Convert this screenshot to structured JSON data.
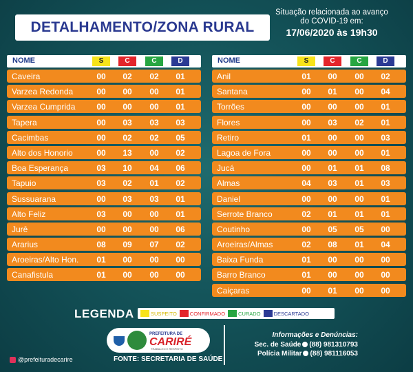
{
  "header": {
    "title": "DETALHAMENTO/ZONA RURAL",
    "situation_line1": "Situação relacionada ao avanço",
    "situation_line2": "do COVID-19 em:",
    "date": "17/06/2020 às 19h30"
  },
  "columns": {
    "name": "NOME",
    "s": "S",
    "c": "C",
    "cu": "C",
    "d": "D"
  },
  "colors": {
    "s": "#f7e31a",
    "c": "#e3252b",
    "cu": "#27a642",
    "d": "#2b3a94",
    "row": "#f28a1e"
  },
  "left_rows": [
    {
      "name": "Caveira",
      "s": "00",
      "c": "02",
      "cu": "02",
      "d": "01"
    },
    {
      "name": "Varzea Redonda",
      "s": "00",
      "c": "00",
      "cu": "00",
      "d": "01"
    },
    {
      "name": "Varzea Cumprida",
      "s": "00",
      "c": "00",
      "cu": "00",
      "d": "01"
    },
    {
      "name": "Tapera",
      "s": "00",
      "c": "03",
      "cu": "03",
      "d": "03"
    },
    {
      "name": "Cacimbas",
      "s": "00",
      "c": "02",
      "cu": "02",
      "d": "05"
    },
    {
      "name": "Alto dos Honorio",
      "s": "00",
      "c": "13",
      "cu": "00",
      "d": "02"
    },
    {
      "name": "Boa Esperança",
      "s": "03",
      "c": "10",
      "cu": "04",
      "d": "06"
    },
    {
      "name": "Tapuio",
      "s": "03",
      "c": "02",
      "cu": "01",
      "d": "02"
    },
    {
      "name": "Sussuarana",
      "s": "00",
      "c": "03",
      "cu": "03",
      "d": "01"
    },
    {
      "name": "Alto Feliz",
      "s": "03",
      "c": "00",
      "cu": "00",
      "d": "01"
    },
    {
      "name": "Jurê",
      "s": "00",
      "c": "00",
      "cu": "00",
      "d": "06"
    },
    {
      "name": "Ararius",
      "s": "08",
      "c": "09",
      "cu": "07",
      "d": "02"
    },
    {
      "name": "Aroeiras/Alto Hon.",
      "s": "01",
      "c": "00",
      "cu": "00",
      "d": "00"
    },
    {
      "name": "Canafistula",
      "s": "01",
      "c": "00",
      "cu": "00",
      "d": "00"
    }
  ],
  "right_rows": [
    {
      "name": "Anil",
      "s": "01",
      "c": "00",
      "cu": "00",
      "d": "02"
    },
    {
      "name": "Santana",
      "s": "00",
      "c": "01",
      "cu": "00",
      "d": "04"
    },
    {
      "name": "Torrões",
      "s": "00",
      "c": "00",
      "cu": "00",
      "d": "01"
    },
    {
      "name": "Flores",
      "s": "00",
      "c": "03",
      "cu": "02",
      "d": "01"
    },
    {
      "name": "Retiro",
      "s": "01",
      "c": "00",
      "cu": "00",
      "d": "03"
    },
    {
      "name": "Lagoa de Fora",
      "s": "00",
      "c": "00",
      "cu": "00",
      "d": "01"
    },
    {
      "name": "Jucá",
      "s": "00",
      "c": "01",
      "cu": "01",
      "d": "08"
    },
    {
      "name": "Almas",
      "s": "04",
      "c": "03",
      "cu": "01",
      "d": "03"
    },
    {
      "name": "Daniel",
      "s": "00",
      "c": "00",
      "cu": "00",
      "d": "01"
    },
    {
      "name": "Serrote Branco",
      "s": "02",
      "c": "01",
      "cu": "01",
      "d": "01"
    },
    {
      "name": "Coutinho",
      "s": "00",
      "c": "05",
      "cu": "05",
      "d": "00"
    },
    {
      "name": "Aroeiras/Almas",
      "s": "02",
      "c": "08",
      "cu": "01",
      "d": "04"
    },
    {
      "name": "Baixa Funda",
      "s": "01",
      "c": "00",
      "cu": "00",
      "d": "00"
    },
    {
      "name": "Barro Branco",
      "s": "01",
      "c": "00",
      "cu": "00",
      "d": "00"
    },
    {
      "name": "Caiçaras",
      "s": "00",
      "c": "01",
      "cu": "00",
      "d": "00"
    }
  ],
  "legend": {
    "title": "LEGENDA",
    "suspeito": "SUSPEITO",
    "confirmado": "CONFIRMADO",
    "curado": "CURADO",
    "descartado": "DESCARTADO"
  },
  "logo": {
    "line1": "PREFEITURA DE",
    "line2": "CARIRÉ",
    "line3": "TRABALHO E RESPEITO"
  },
  "footer": {
    "fonte": "FONTE: SECRETARIA DE SAÚDE",
    "info_title": "Informações e Denúncias:",
    "sec_label": "Sec. de Saúde",
    "sec_phone": "(88) 981310793",
    "pm_label": "Polícia Militar",
    "pm_phone": "(88) 981116053",
    "instagram": "@prefeituradecarire"
  }
}
